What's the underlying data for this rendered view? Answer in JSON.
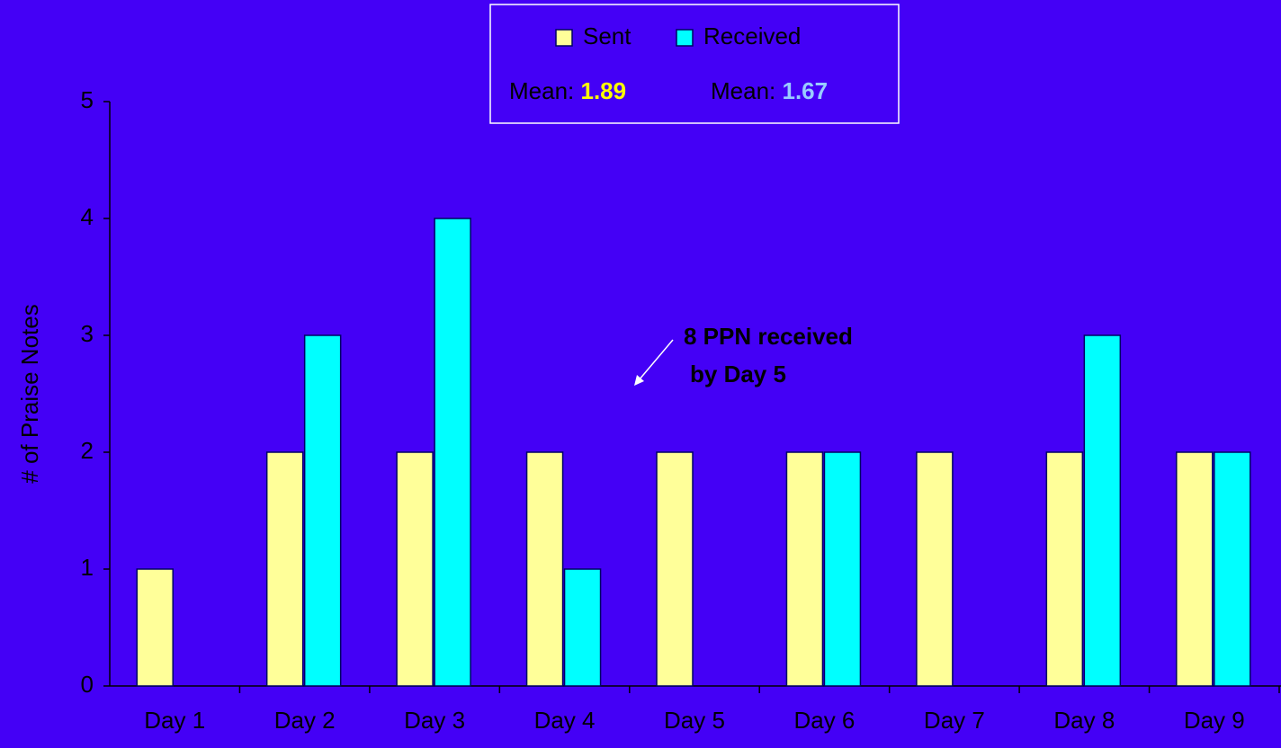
{
  "chart_data": {
    "type": "bar",
    "y_label": "# of Praise Notes",
    "categories": [
      "Day 1",
      "Day 2",
      "Day 3",
      "Day 4",
      "Day 5",
      "Day 6",
      "Day 7",
      "Day 8",
      "Day 9"
    ],
    "series": [
      {
        "name": "Sent",
        "color": "#ffff99",
        "values": [
          1,
          2,
          2,
          2,
          2,
          2,
          2,
          2,
          2
        ]
      },
      {
        "name": "Received",
        "color": "#00ffff",
        "values": [
          0,
          3,
          4,
          1,
          0,
          2,
          0,
          3,
          2
        ]
      }
    ],
    "mean_label": "Mean:",
    "means": [
      1.89,
      1.67
    ],
    "mean_colors": [
      "#ffff00",
      "#99ccff"
    ],
    "annotation": [
      "8 PPN received",
      "by Day 5"
    ],
    "ylim": [
      0,
      5
    ],
    "yticks": [
      0,
      1,
      2,
      3,
      4,
      5
    ],
    "grid": false,
    "legend": "top"
  }
}
